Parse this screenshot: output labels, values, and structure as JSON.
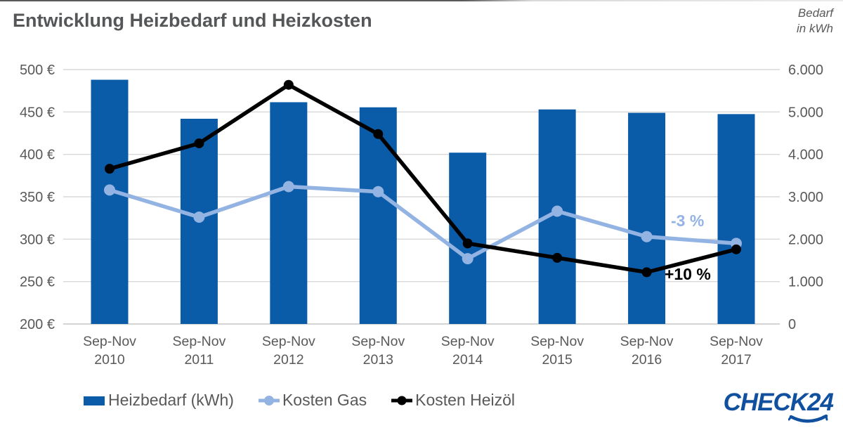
{
  "title": "Entwicklung Heizbedarf und Heizkosten",
  "right_axis_title": {
    "line1": "Bedarf",
    "line2": "in kWh"
  },
  "logo": {
    "text": "CHECK24",
    "color": "#10509e"
  },
  "chart_data": {
    "type": "combo-bar-line",
    "title": "Entwicklung Heizbedarf und Heizkosten",
    "categories": [
      {
        "period": "Sep-Nov",
        "year": "2010"
      },
      {
        "period": "Sep-Nov",
        "year": "2011"
      },
      {
        "period": "Sep-Nov",
        "year": "2012"
      },
      {
        "period": "Sep-Nov",
        "year": "2013"
      },
      {
        "period": "Sep-Nov",
        "year": "2014"
      },
      {
        "period": "Sep-Nov",
        "year": "2015"
      },
      {
        "period": "Sep-Nov",
        "year": "2016"
      },
      {
        "period": "Sep-Nov",
        "year": "2017"
      }
    ],
    "bar_series": {
      "name": "Heizbedarf (kWh)",
      "axis": "right",
      "color": "#0b5ca8",
      "values": [
        5760,
        4840,
        5230,
        5110,
        4040,
        5060,
        4980,
        4950
      ]
    },
    "line_series": [
      {
        "name": "Kosten Gas",
        "axis": "left",
        "color": "#93b3e3",
        "values": [
          358,
          326,
          362,
          356,
          277,
          333,
          303,
          295
        ]
      },
      {
        "name": "Kosten Heizöl",
        "axis": "left",
        "color": "#000000",
        "values": [
          383,
          413,
          482,
          424,
          295,
          278,
          261,
          288
        ]
      }
    ],
    "left_axis": {
      "unit": "€",
      "min": 200,
      "max": 500,
      "step": 50,
      "tick_labels": [
        "500 €",
        "450 €",
        "400 €",
        "350 €",
        "300 €",
        "250 €",
        "200 €"
      ]
    },
    "right_axis": {
      "title": "Bedarf in kWh",
      "min": 0,
      "max": 6000,
      "step": 1000,
      "tick_labels": [
        "6.000",
        "5.000",
        "4.000",
        "3.000",
        "2.000",
        "1.000",
        "0"
      ]
    },
    "annotations": [
      {
        "text": "-3 %",
        "series": "Kosten Gas",
        "color": "#93b3e3"
      },
      {
        "text": "+10 %",
        "series": "Kosten Heizöl",
        "color": "#000000"
      }
    ],
    "grid": true,
    "gridline_color": "#d9d9d9",
    "legend_position": "bottom"
  }
}
